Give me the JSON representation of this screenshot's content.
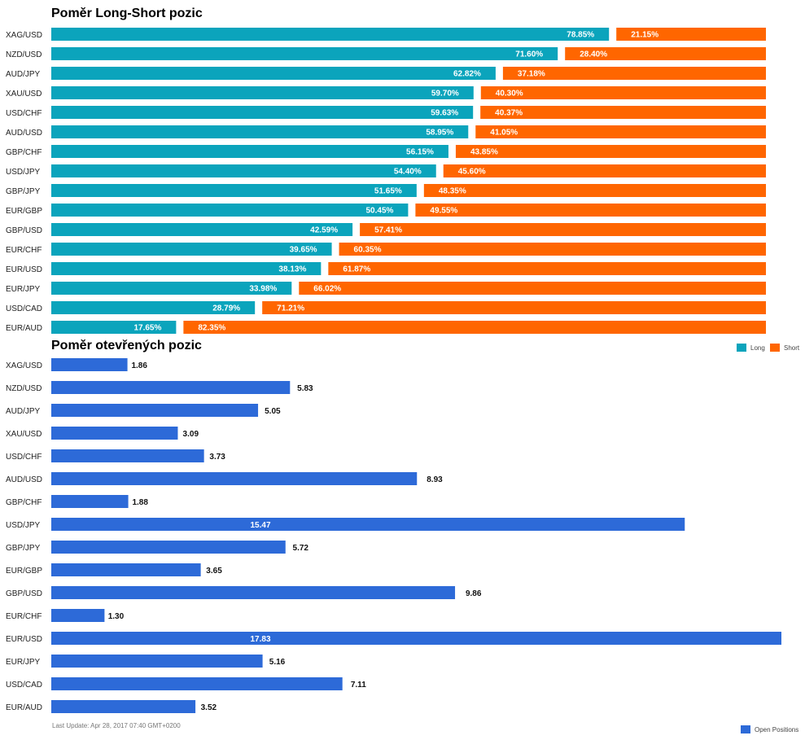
{
  "chart_data": [
    {
      "type": "bar",
      "orientation": "horizontal",
      "stacked": true,
      "title": "Poměr Long-Short pozic",
      "categories": [
        "XAG/USD",
        "NZD/USD",
        "AUD/JPY",
        "XAU/USD",
        "USD/CHF",
        "AUD/USD",
        "GBP/CHF",
        "USD/JPY",
        "GBP/JPY",
        "EUR/GBP",
        "GBP/USD",
        "EUR/CHF",
        "EUR/USD",
        "EUR/JPY",
        "USD/CAD",
        "EUR/AUD"
      ],
      "series": [
        {
          "name": "Long",
          "values": [
            78.85,
            71.6,
            62.82,
            59.7,
            59.63,
            58.95,
            56.15,
            54.4,
            51.65,
            50.45,
            42.59,
            39.65,
            38.13,
            33.98,
            28.79,
            17.65
          ]
        },
        {
          "name": "Short",
          "values": [
            21.15,
            28.4,
            37.18,
            40.3,
            40.37,
            41.05,
            43.85,
            45.6,
            48.35,
            49.55,
            57.41,
            60.35,
            61.87,
            66.02,
            71.21,
            82.35
          ]
        }
      ],
      "value_suffix": "%",
      "xlim": [
        0,
        100
      ],
      "legend_position": "bottom-right",
      "colors": {
        "Long": "#0ba4bc",
        "Short": "#ff6600"
      }
    },
    {
      "type": "bar",
      "orientation": "horizontal",
      "title": "Poměr otevřených pozic",
      "categories": [
        "XAG/USD",
        "NZD/USD",
        "AUD/JPY",
        "XAU/USD",
        "USD/CHF",
        "AUD/USD",
        "GBP/CHF",
        "USD/JPY",
        "GBP/JPY",
        "EUR/GBP",
        "GBP/USD",
        "EUR/CHF",
        "EUR/USD",
        "EUR/JPY",
        "USD/CAD",
        "EUR/AUD"
      ],
      "series": [
        {
          "name": "Open Positions",
          "values": [
            1.86,
            5.83,
            5.05,
            3.09,
            3.73,
            8.93,
            1.88,
            15.47,
            5.72,
            3.65,
            9.86,
            1.3,
            17.83,
            5.16,
            7.11,
            3.52
          ]
        }
      ],
      "xlim": [
        0,
        17.83
      ],
      "legend_position": "bottom-right",
      "colors": {
        "Open Positions": "#2d6ad8"
      }
    }
  ],
  "footer": {
    "last_update": "Last Update: Apr 28, 2017 07:40 GMT+0200"
  }
}
